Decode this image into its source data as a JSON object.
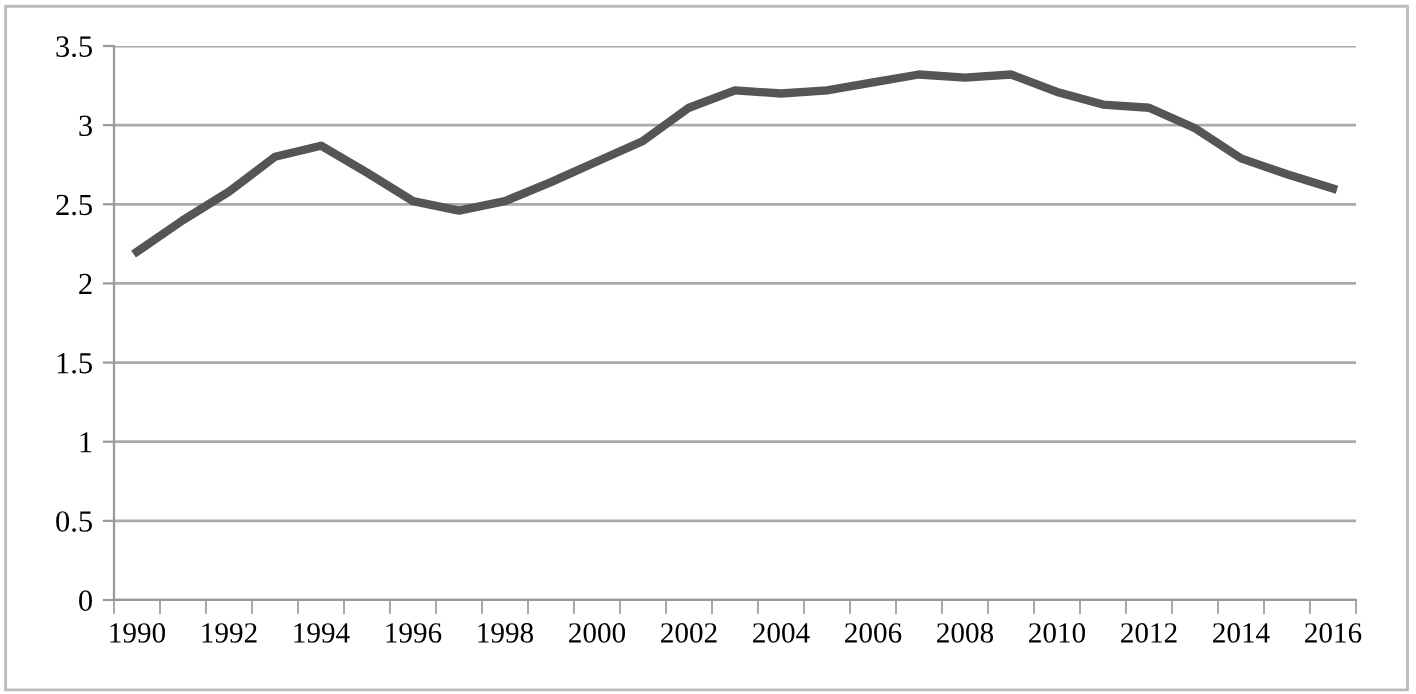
{
  "chart_data": {
    "type": "line",
    "categories": [
      "1990",
      null,
      "1992",
      null,
      "1994",
      null,
      "1996",
      null,
      "1998",
      null,
      "2000",
      null,
      "2002",
      null,
      "2004",
      null,
      "2006",
      null,
      "2008",
      null,
      "2010",
      null,
      "2012",
      null,
      "2014",
      null,
      "2016"
    ],
    "series": [
      {
        "color": "#555555",
        "values": [
          2.2,
          2.4,
          2.58,
          2.8,
          2.87,
          2.7,
          2.52,
          2.46,
          2.52,
          2.64,
          2.77,
          2.9,
          3.11,
          3.22,
          3.2,
          3.22,
          3.27,
          3.32,
          3.3,
          3.32,
          3.21,
          3.13,
          3.11,
          2.98,
          2.79,
          2.69,
          2.6
        ]
      }
    ],
    "ylim": [
      0,
      3.5
    ],
    "yticks": [
      0,
      0.5,
      1,
      1.5,
      2,
      2.5,
      3,
      3.5
    ],
    "grid": "y",
    "marker": "none",
    "line_style": "solid"
  }
}
